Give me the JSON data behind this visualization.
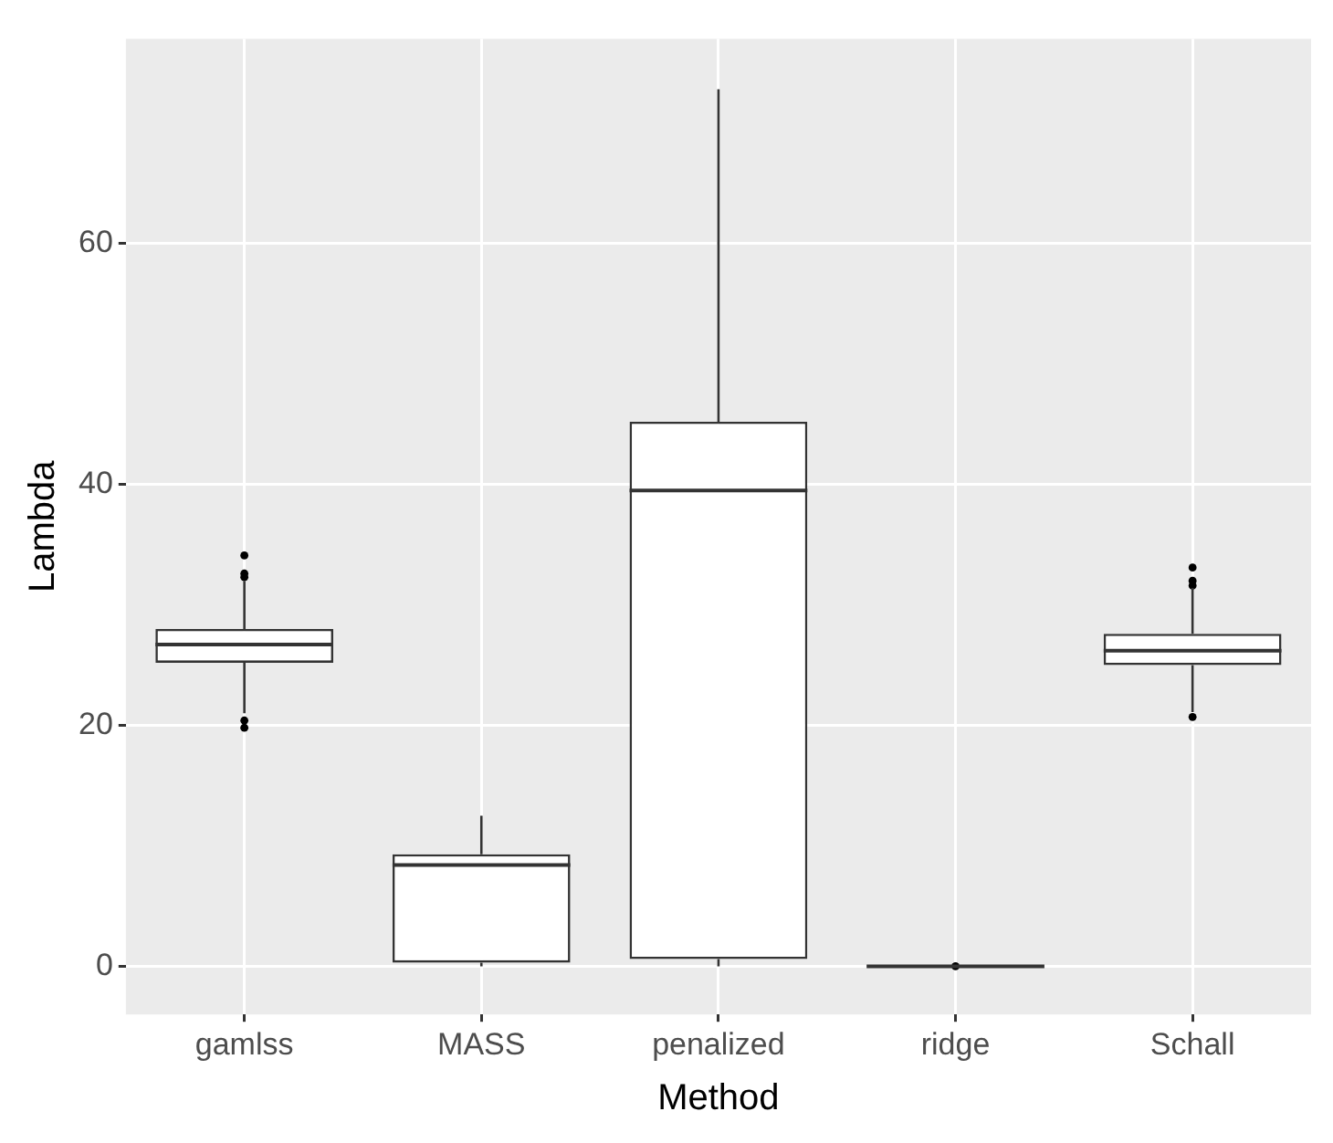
{
  "chart_data": {
    "type": "box",
    "xlabel": "Method",
    "ylabel": "Lambda",
    "categories": [
      "gamlss",
      "MASS",
      "penalized",
      "ridge",
      "Schall"
    ],
    "boxes": [
      {
        "low": 21.0,
        "q1": 25.2,
        "median": 26.7,
        "q3": 28.0,
        "high": 32.0,
        "outliers": [
          34.1,
          32.6,
          32.3,
          20.4,
          19.8
        ]
      },
      {
        "low": 0,
        "q1": 0.3,
        "median": 8.4,
        "q3": 9.3,
        "high": 12.5
      },
      {
        "low": 0,
        "q1": 0.6,
        "median": 39.5,
        "q3": 45.2,
        "high": 72.8
      },
      {
        "low": 0,
        "q1": 0,
        "median": 0,
        "q3": 0,
        "high": 0,
        "outliers": [
          0
        ]
      },
      {
        "low": 21.1,
        "q1": 25.0,
        "median": 26.2,
        "q3": 27.6,
        "high": 31.4,
        "outliers": [
          33.1,
          32.0,
          31.6,
          20.7
        ]
      }
    ],
    "ylim": [
      -4,
      77
    ],
    "yticks": [
      0,
      20,
      40,
      60
    ],
    "grid": true
  }
}
